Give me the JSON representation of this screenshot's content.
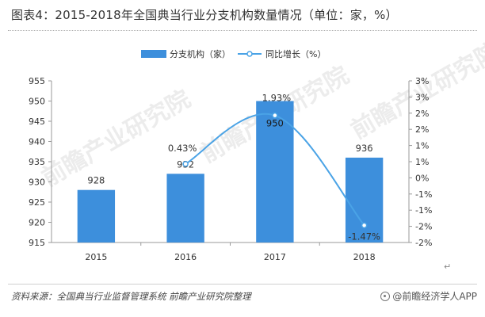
{
  "title": "图表4：2015-2018年全国典当行业分支机构数量情况（单位：家，%）",
  "source": "资料来源：全国典当行业监督管理系统 前瞻产业研究院整理",
  "brand": "@前瞻经济学人APP",
  "watermark_text": "前瞻产业研究院",
  "return_mark": "↵",
  "colors": {
    "bar": "#3d8fdc",
    "line": "#4aa3e6",
    "axis": "#9a9a9a",
    "text": "#333333"
  },
  "chart_data": {
    "type": "bar+line",
    "categories": [
      "2015",
      "2016",
      "2017",
      "2018"
    ],
    "series": [
      {
        "name": "分支机构（家）",
        "type": "bar",
        "axis": "left",
        "values": [
          928,
          932,
          950,
          936
        ],
        "labels": [
          "928",
          "932",
          "950",
          "936"
        ]
      },
      {
        "name": "同比增长（%）",
        "type": "line",
        "axis": "right",
        "values": [
          null,
          0.43,
          1.93,
          -1.47
        ],
        "labels": [
          "",
          "0.43%",
          "1.93%",
          "-1.47%"
        ]
      }
    ],
    "y_left": {
      "min": 915,
      "max": 955,
      "ticks": [
        "915",
        "920",
        "925",
        "930",
        "935",
        "940",
        "945",
        "950",
        "955"
      ]
    },
    "y_right": {
      "min": -2,
      "max": 3,
      "ticks": [
        "-2%",
        "-2%",
        "-1%",
        "-1%",
        "0%",
        "1%",
        "1%",
        "2%",
        "2%",
        "3%",
        "3%"
      ]
    },
    "legend_position": "top-center",
    "grid": false
  }
}
